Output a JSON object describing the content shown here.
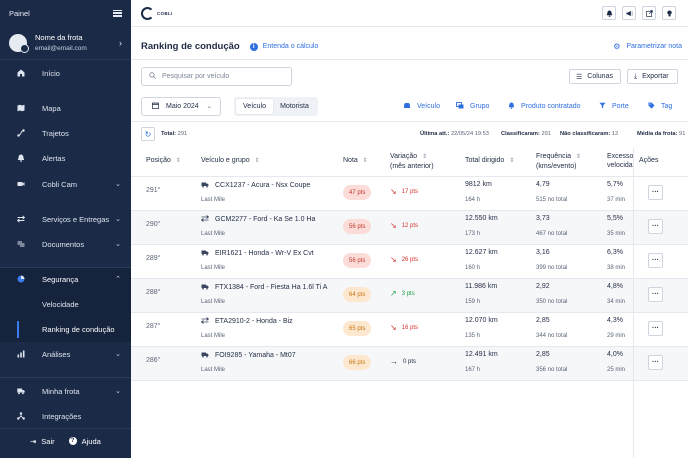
{
  "sidebar": {
    "header_title": "Painel",
    "fleet_name": "Nome da frota",
    "fleet_email": "email@email.com",
    "items": [
      {
        "label": "Início",
        "icon": "home-icon"
      },
      {
        "label": "Mapa",
        "icon": "map-icon"
      },
      {
        "label": "Trajetos",
        "icon": "route-icon"
      },
      {
        "label": "Alertas",
        "icon": "bell-icon"
      },
      {
        "label": "Cobli Cam",
        "icon": "camera-icon"
      },
      {
        "label": "Serviços e Entregas",
        "icon": "services-icon"
      },
      {
        "label": "Documentos",
        "icon": "documents-icon"
      },
      {
        "label": "Segurança",
        "icon": "shield-icon"
      },
      {
        "label": "Análises",
        "icon": "analytics-icon"
      },
      {
        "label": "Minha frota",
        "icon": "truck-icon"
      },
      {
        "label": "Integrações",
        "icon": "integrations-icon"
      }
    ],
    "security_sub": [
      "Velocidade",
      "Ranking de condução"
    ],
    "logout": "Sair",
    "help": "Ajuda"
  },
  "topbar": {
    "logo_text": "COBLI"
  },
  "page": {
    "title": "Ranking de condução",
    "info_link": "Entenda o cálculo",
    "param_button": "Parametrizar nota"
  },
  "toolbar": {
    "search_placeholder": "Pesquisar por veículo",
    "columns_button": "Colunas",
    "export_button": "Exportar"
  },
  "filters": {
    "month": "Maio 2024",
    "segments": [
      "Veículo",
      "Motorista"
    ],
    "options": [
      "Veículo",
      "Grupo",
      "Produto contratado",
      "Porte",
      "Tag"
    ]
  },
  "summary": {
    "total_label": "Total:",
    "total_value": "291",
    "updated_label": "Última att.:",
    "updated_value": "22/05/24 19:53",
    "classified_label": "Classificaram:",
    "classified_value": "291",
    "not_classified_label": "Não classificaram:",
    "not_classified_value": "12",
    "avg_label": "Média da frota:",
    "avg_value": "91"
  },
  "table": {
    "headers": {
      "position": "Posição",
      "vehicle": "Veículo e grupo",
      "score": "Nota",
      "variation_1": "Variação",
      "variation_2": "(mês anterior)",
      "distance": "Total dirigido",
      "frequency_1": "Frequência",
      "frequency_2": "(kms/evento)",
      "speed_1": "Excesso",
      "speed_2": "velocida",
      "actions": "Ações"
    },
    "rows": [
      {
        "position": "291°",
        "vehicle": "CCX1237 - Acura - Nsx Coupe",
        "vtype": "car",
        "group": "Last Mile",
        "score": "47 pts",
        "tone": "red",
        "variation": "17 pts",
        "trend": "down",
        "km": "9812 km",
        "hours": "164 h",
        "freq": "4,79",
        "events": "515 no total",
        "excess": "5,7%",
        "excess_time": "37 min"
      },
      {
        "position": "290°",
        "vehicle": "GCM2277 - Ford - Ka Se 1.0 Ha",
        "vtype": "vehicle",
        "group": "Last Mile",
        "score": "56 pts",
        "tone": "red",
        "variation": "12 pts",
        "trend": "down",
        "km": "12.550 km",
        "hours": "173 h",
        "freq": "3,73",
        "events": "467 no total",
        "excess": "5,5%",
        "excess_time": "35 min"
      },
      {
        "position": "289°",
        "vehicle": "EIR1621 - Honda - Wr-V Ex Cvt",
        "vtype": "car",
        "group": "Last Mile",
        "score": "56 pts",
        "tone": "red",
        "variation": "26 pts",
        "trend": "down",
        "km": "12.627 km",
        "hours": "160 h",
        "freq": "3,16",
        "events": "399 no total",
        "excess": "6,3%",
        "excess_time": "38 min"
      },
      {
        "position": "288°",
        "vehicle": "FTX1384 - Ford - Fiesta Ha 1.6l Ti A",
        "vtype": "car",
        "group": "Last Mile",
        "score": "64 pts",
        "tone": "orange",
        "variation": "3 pts",
        "trend": "up",
        "km": "11.986 km",
        "hours": "159 h",
        "freq": "2,92",
        "events": "350 no total",
        "excess": "4,8%",
        "excess_time": "34 min"
      },
      {
        "position": "287°",
        "vehicle": "ETA2910-2 - Honda - Biz",
        "vtype": "vehicle",
        "group": "Last Mile",
        "score": "65 pts",
        "tone": "orange",
        "variation": "16 pts",
        "trend": "down",
        "km": "12.070 km",
        "hours": "135 h",
        "freq": "2,85",
        "events": "344 no total",
        "excess": "4,3%",
        "excess_time": "29 min"
      },
      {
        "position": "286°",
        "vehicle": "FOI9285 - Yamaha - Mt07",
        "vtype": "car",
        "group": "Last Mile",
        "score": "66 pts",
        "tone": "orange",
        "variation": "0 pts",
        "trend": "flat",
        "km": "12.491 km",
        "hours": "167 h",
        "freq": "2,85",
        "events": "356 no total",
        "excess": "4,0%",
        "excess_time": "25 min"
      }
    ]
  }
}
